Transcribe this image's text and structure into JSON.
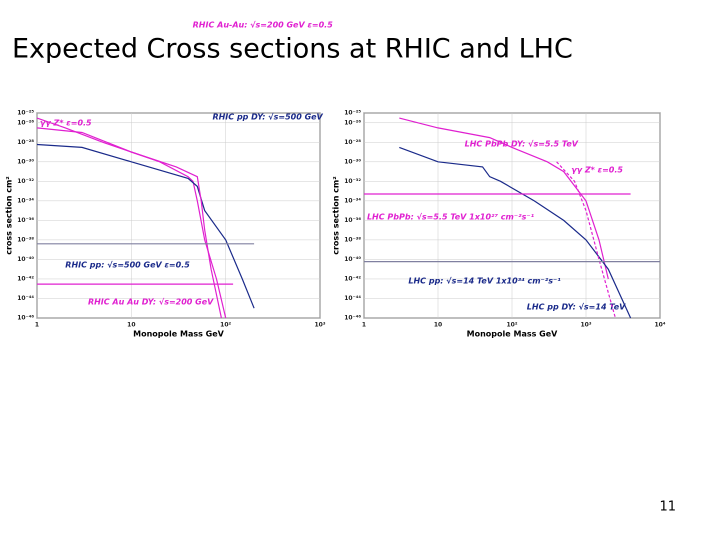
{
  "slide": {
    "title": "Expected Cross sections at RHIC and LHC",
    "page_number": "11"
  },
  "chart_data": [
    {
      "type": "line",
      "x_label": "Monopole Mass GeV",
      "y_label": "cross section cm²",
      "log_x": true,
      "log_y": true,
      "xlim": [
        1,
        1000
      ],
      "xticks": [
        1,
        10,
        {
          "value": 100,
          "label": "10²"
        },
        {
          "value": 1000,
          "label": "10³"
        }
      ],
      "ylim": [
        1e-46,
        1e-25
      ],
      "yticks": [
        {
          "value": 1e-25,
          "label": "10⁻²⁵"
        },
        {
          "value": 1e-26,
          "label": "10⁻²⁶"
        },
        {
          "value": 1e-28,
          "label": "10⁻²⁸"
        },
        {
          "value": 1e-30,
          "label": "10⁻³⁰"
        },
        {
          "value": 1e-32,
          "label": "10⁻³²"
        },
        {
          "value": 1e-34,
          "label": "10⁻³⁴"
        },
        {
          "value": 1e-36,
          "label": "10⁻³⁶"
        },
        {
          "value": 1e-38,
          "label": "10⁻³⁸"
        },
        {
          "value": 1e-40,
          "label": "10⁻⁴⁰"
        },
        {
          "value": 1e-42,
          "label": "10⁻⁴²"
        },
        {
          "value": 1e-44,
          "label": "10⁻⁴⁴"
        },
        {
          "value": 1e-46,
          "label": "10⁻⁴⁶"
        }
      ],
      "grid": true,
      "series": [
        {
          "name": "RHIC Au-Au: √s=200 GeV ε=0.5",
          "color": "#e020d0",
          "dashed": false,
          "x": [
            1,
            2,
            5,
            10,
            20,
            40,
            45,
            50,
            60,
            80,
            100
          ],
          "values": [
            3e-26,
            3e-27,
            1e-28,
            1e-29,
            1e-30,
            3e-32,
            1e-32,
            1e-34,
            1e-38,
            1e-42,
            1e-46
          ]
        },
        {
          "name": "RHIC pp DY: √s=500 GeV",
          "color": "#1a2a8a",
          "dashed": false,
          "x": [
            1,
            3,
            10,
            40,
            50,
            60,
            100,
            150,
            200
          ],
          "values": [
            6e-29,
            3e-29,
            1e-30,
            2e-32,
            3e-33,
            1e-35,
            1e-38,
            1e-42,
            1e-45
          ]
        },
        {
          "name": "γγ Z* ε=0.5",
          "color": "#e020d0",
          "dashed": false,
          "x": [
            1,
            3,
            10,
            30,
            50,
            55,
            60,
            70,
            90
          ],
          "values": [
            3e-27,
            1e-27,
            1e-29,
            3e-31,
            3e-32,
            1e-34,
            1e-37,
            1e-41,
            1e-46
          ]
        },
        {
          "name": "RHIC pp: √s=500 GeV ε=0.5",
          "color": "#8080a0",
          "dashed": false,
          "x": [
            1,
            200
          ],
          "values": [
            4e-39,
            4e-39
          ]
        },
        {
          "name": "RHIC Au Au DY: √s=200 GeV",
          "color": "#e020d0",
          "dashed": false,
          "x": [
            1,
            120
          ],
          "values": [
            3e-43,
            3e-43
          ]
        }
      ]
    },
    {
      "type": "line",
      "x_label": "Monopole Mass GeV",
      "y_label": "cross section cm²",
      "log_x": true,
      "log_y": true,
      "xlim": [
        1,
        10000
      ],
      "xticks": [
        1,
        10,
        {
          "value": 100,
          "label": "10²"
        },
        {
          "value": 1000,
          "label": "10³"
        },
        {
          "value": 10000,
          "label": "10⁴"
        }
      ],
      "ylim": [
        1e-46,
        1e-25
      ],
      "yticks": [
        {
          "value": 1e-25,
          "label": "10⁻²⁵"
        },
        {
          "value": 1e-26,
          "label": "10⁻²⁶"
        },
        {
          "value": 1e-28,
          "label": "10⁻²⁸"
        },
        {
          "value": 1e-30,
          "label": "10⁻³⁰"
        },
        {
          "value": 1e-32,
          "label": "10⁻³²"
        },
        {
          "value": 1e-34,
          "label": "10⁻³⁴"
        },
        {
          "value": 1e-36,
          "label": "10⁻³⁶"
        },
        {
          "value": 1e-38,
          "label": "10⁻³⁸"
        },
        {
          "value": 1e-40,
          "label": "10⁻⁴⁰"
        },
        {
          "value": 1e-42,
          "label": "10⁻⁴²"
        },
        {
          "value": 1e-44,
          "label": "10⁻⁴⁴"
        },
        {
          "value": 1e-46,
          "label": "10⁻⁴⁶"
        }
      ],
      "grid": true,
      "series": [
        {
          "name": "LHC PbPb DY: √s=5.5 TeV",
          "color": "#e020d0",
          "dashed": false,
          "x": [
            3,
            10,
            50,
            100,
            300,
            500,
            1000,
            1500,
            2000
          ],
          "values": [
            3e-26,
            3e-27,
            3e-28,
            3e-29,
            1e-30,
            1e-31,
            1e-34,
            1e-38,
            1e-42
          ]
        },
        {
          "name": "LHC pp DY: √s=14 TeV",
          "color": "#1a2a8a",
          "dashed": false,
          "x": [
            3,
            10,
            40,
            50,
            70,
            200,
            500,
            1000,
            2000,
            4000
          ],
          "values": [
            3e-29,
            1e-30,
            3e-31,
            3e-32,
            1e-32,
            1e-34,
            1e-36,
            1e-38,
            1e-41,
            1e-46
          ]
        },
        {
          "name": "γγ Z* ε=0.5",
          "color": "#e020d0",
          "dashed": true,
          "x": [
            400,
            700,
            1000,
            1500,
            2500
          ],
          "values": [
            1e-30,
            1e-32,
            1e-35,
            1e-40,
            1e-46
          ]
        },
        {
          "name": "LHC PbPb: √s=5.5 TeV 1x10²⁷ cm⁻²s⁻¹",
          "color": "#e020d0",
          "dashed": false,
          "x": [
            1,
            4000
          ],
          "values": [
            5e-34,
            5e-34
          ]
        },
        {
          "name": "LHC pp: √s=14 TeV 1x10³⁴ cm⁻²s⁻¹",
          "color": "#8080a0",
          "dashed": false,
          "x": [
            1,
            10000
          ],
          "values": [
            6e-41,
            6e-41
          ]
        }
      ]
    }
  ]
}
